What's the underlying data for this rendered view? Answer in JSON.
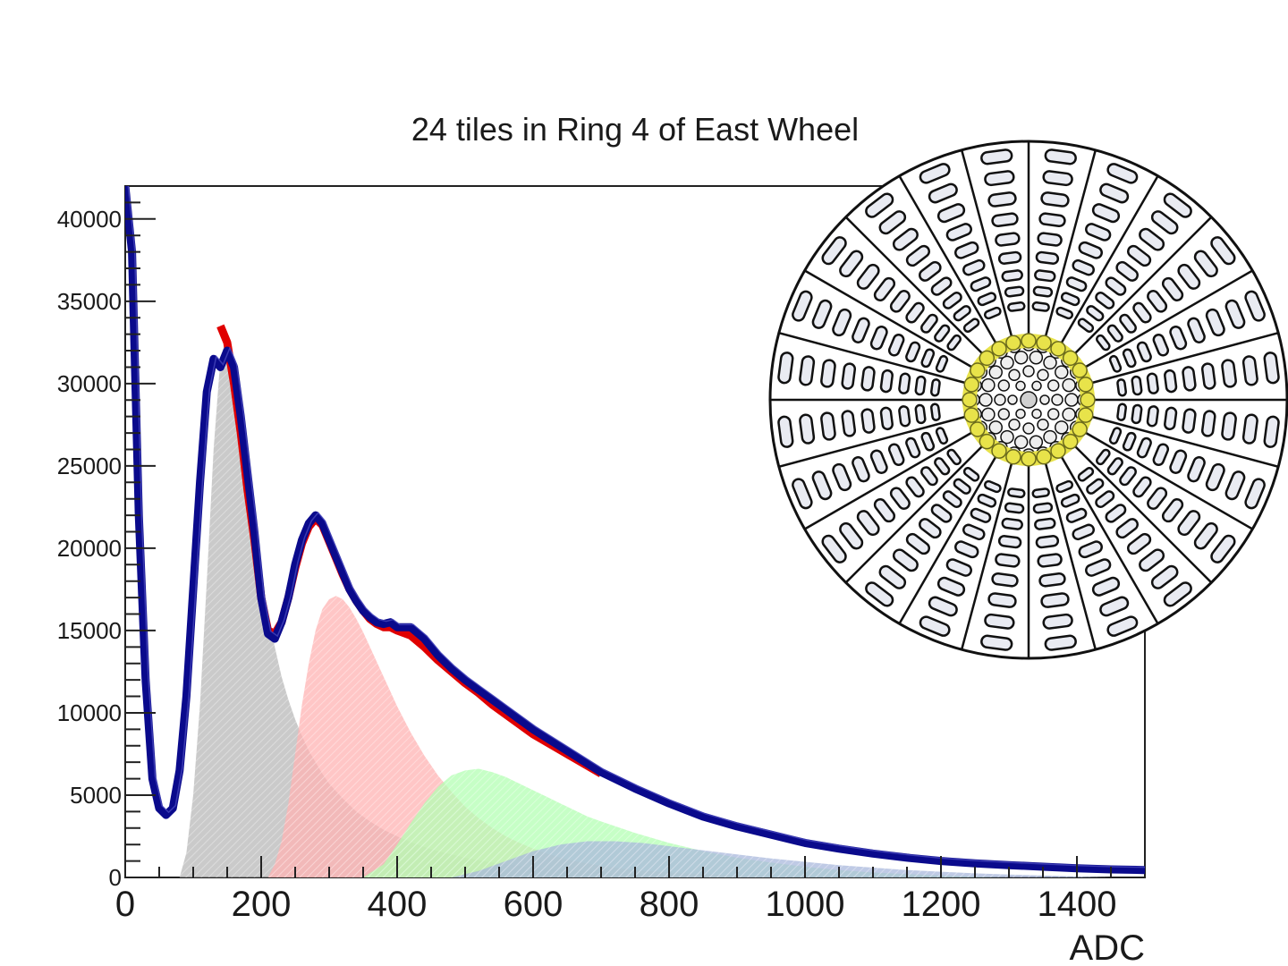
{
  "chart_data": {
    "type": "line",
    "title": "24 tiles in Ring 4 of East Wheel",
    "xlabel": "ADC",
    "ylabel": "",
    "xlim": [
      0,
      1500
    ],
    "ylim": [
      0,
      42000
    ],
    "x_ticks": [
      0,
      200,
      400,
      600,
      800,
      1000,
      1200,
      1400
    ],
    "y_ticks": [
      0,
      5000,
      10000,
      15000,
      20000,
      25000,
      30000,
      35000,
      40000
    ],
    "grid": false,
    "colors": {
      "data": "#0a0a8c",
      "fit": "#e00000",
      "component_1": "#b8b8b8",
      "component_2": "#ffb3b3",
      "component_3": "#b3ffb3",
      "component_4": "#a9b8dc",
      "highlight_ring": "#e8e34a"
    },
    "series": [
      {
        "role": "data",
        "x": [
          0,
          10,
          20,
          30,
          40,
          50,
          60,
          70,
          80,
          90,
          100,
          110,
          120,
          130,
          140,
          150,
          160,
          170,
          180,
          190,
          200,
          210,
          220,
          230,
          240,
          250,
          260,
          270,
          280,
          290,
          300,
          310,
          320,
          330,
          340,
          350,
          360,
          370,
          380,
          390,
          400,
          420,
          440,
          460,
          480,
          500,
          520,
          540,
          560,
          580,
          600,
          650,
          700,
          750,
          800,
          850,
          900,
          950,
          1000,
          1050,
          1100,
          1150,
          1200,
          1250,
          1300,
          1350,
          1400,
          1450,
          1500
        ],
        "y": [
          42000,
          38000,
          22000,
          12000,
          6000,
          4200,
          3800,
          4200,
          6500,
          11000,
          17500,
          24000,
          29500,
          31500,
          31000,
          32000,
          31000,
          28000,
          24500,
          21000,
          17000,
          14800,
          14500,
          15500,
          17000,
          19000,
          20500,
          21500,
          22000,
          21500,
          20500,
          19500,
          18500,
          17500,
          16800,
          16200,
          15800,
          15500,
          15400,
          15500,
          15200,
          15200,
          14500,
          13500,
          12700,
          12000,
          11400,
          10800,
          10200,
          9600,
          9000,
          7700,
          6400,
          5400,
          4500,
          3700,
          3100,
          2600,
          2100,
          1750,
          1450,
          1200,
          1000,
          860,
          750,
          650,
          560,
          490,
          450
        ]
      },
      {
        "role": "fit",
        "x": [
          140,
          150,
          160,
          170,
          180,
          190,
          200,
          210,
          220,
          230,
          240,
          250,
          260,
          270,
          280,
          290,
          300,
          310,
          320,
          330,
          340,
          350,
          360,
          370,
          380,
          390,
          400,
          420,
          440,
          460,
          480,
          500,
          520,
          540,
          560,
          580,
          600,
          650,
          700
        ],
        "y": [
          33500,
          32500,
          30000,
          27000,
          23500,
          20500,
          17000,
          15000,
          14800,
          15500,
          17000,
          18800,
          20300,
          21300,
          21800,
          21400,
          20400,
          19400,
          18400,
          17500,
          16800,
          16200,
          15700,
          15400,
          15200,
          15200,
          15000,
          14700,
          14000,
          13200,
          12500,
          11800,
          11200,
          10500,
          9900,
          9300,
          8700,
          7500,
          6300
        ]
      },
      {
        "role": "component_1",
        "x": [
          80,
          90,
          100,
          110,
          120,
          130,
          140,
          150,
          160,
          170,
          180,
          190,
          200,
          210,
          220,
          230,
          240,
          250,
          260,
          270,
          280,
          290,
          300,
          320,
          340,
          360,
          380,
          400,
          420,
          440,
          460,
          480,
          500,
          520,
          540,
          560,
          580,
          600,
          620,
          640,
          660,
          680,
          700,
          750,
          800,
          850,
          900
        ],
        "y": [
          0,
          1500,
          5000,
          10500,
          18000,
          26000,
          31500,
          33000,
          31500,
          28500,
          25000,
          21500,
          18500,
          16000,
          14000,
          12200,
          10800,
          9600,
          8600,
          7700,
          7000,
          6300,
          5700,
          4800,
          4000,
          3400,
          2900,
          2500,
          2150,
          1850,
          1600,
          1400,
          1200,
          1050,
          900,
          780,
          680,
          600,
          520,
          460,
          400,
          350,
          300,
          210,
          140,
          90,
          0
        ]
      },
      {
        "role": "component_2",
        "x": [
          210,
          220,
          230,
          240,
          250,
          260,
          270,
          280,
          290,
          300,
          310,
          320,
          330,
          340,
          350,
          360,
          370,
          380,
          390,
          400,
          420,
          440,
          460,
          480,
          500,
          520,
          540,
          560,
          580,
          600,
          620,
          640,
          660,
          680,
          700,
          750,
          800,
          850,
          900,
          950,
          1000
        ],
        "y": [
          0,
          800,
          2200,
          4500,
          7500,
          10500,
          13000,
          15000,
          16300,
          16900,
          17100,
          16900,
          16400,
          15700,
          14900,
          14000,
          13100,
          12200,
          11300,
          10400,
          8800,
          7400,
          6200,
          5200,
          4300,
          3600,
          3000,
          2500,
          2100,
          1750,
          1450,
          1200,
          1000,
          850,
          700,
          450,
          300,
          200,
          120,
          60,
          0
        ]
      },
      {
        "role": "component_3",
        "x": [
          350,
          380,
          400,
          420,
          440,
          460,
          480,
          500,
          520,
          540,
          560,
          580,
          600,
          620,
          640,
          660,
          680,
          700,
          750,
          800,
          850,
          900,
          950,
          1000,
          1050,
          1100,
          1150,
          1200,
          1250,
          1300
        ],
        "y": [
          0,
          800,
          2000,
          3300,
          4500,
          5500,
          6200,
          6500,
          6600,
          6400,
          6100,
          5700,
          5300,
          4900,
          4500,
          4100,
          3700,
          3400,
          2700,
          2100,
          1600,
          1200,
          900,
          650,
          450,
          300,
          200,
          120,
          60,
          0
        ]
      },
      {
        "role": "component_4",
        "x": [
          480,
          520,
          560,
          600,
          640,
          680,
          720,
          760,
          800,
          850,
          900,
          950,
          1000,
          1050,
          1100,
          1150,
          1200,
          1250,
          1300,
          1350,
          1400,
          1450
        ],
        "y": [
          0,
          400,
          1000,
          1600,
          2000,
          2200,
          2200,
          2100,
          1900,
          1650,
          1400,
          1150,
          950,
          750,
          600,
          450,
          350,
          250,
          180,
          120,
          60,
          0
        ]
      }
    ]
  }
}
